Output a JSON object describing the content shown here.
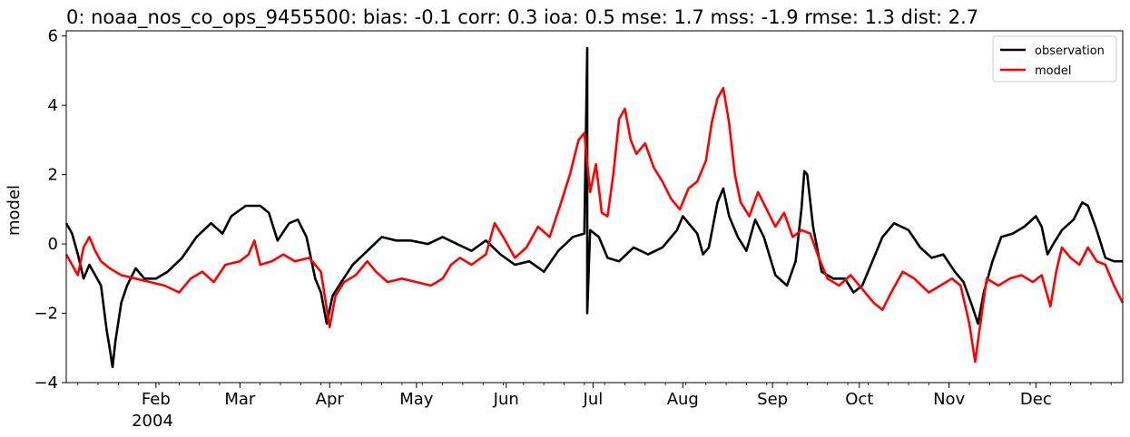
{
  "chart_data": {
    "type": "line",
    "title": "0: noaa_nos_co_ops_9455500: bias: -0.1  corr: 0.3  ioa: 0.5  mse: 1.7  mss: -1.9  rmse: 1.3  dist: 2.7",
    "xlabel": "",
    "ylabel": "model",
    "xlim": [
      "2004-01-01",
      "2004-12-31"
    ],
    "ylim": [
      -4,
      6.15
    ],
    "yticks": [
      -4,
      -2,
      0,
      2,
      4,
      6
    ],
    "ytick_labels": [
      "−4",
      "−2",
      "0",
      "2",
      "4",
      "6"
    ],
    "xticks": [
      {
        "date": "2004-02-01",
        "label": "Feb"
      },
      {
        "date": "2004-03-01",
        "label": "Mar"
      },
      {
        "date": "2004-04-01",
        "label": "Apr"
      },
      {
        "date": "2004-05-01",
        "label": "May"
      },
      {
        "date": "2004-06-01",
        "label": "Jun"
      },
      {
        "date": "2004-07-01",
        "label": "Jul"
      },
      {
        "date": "2004-08-01",
        "label": "Aug"
      },
      {
        "date": "2004-09-01",
        "label": "Sep"
      },
      {
        "date": "2004-10-01",
        "label": "Oct"
      },
      {
        "date": "2004-11-01",
        "label": "Nov"
      },
      {
        "date": "2004-12-01",
        "label": "Dec"
      }
    ],
    "year_label": "2004",
    "grid": false,
    "legend_position": "top-right",
    "series": [
      {
        "name": "observation",
        "color": "#000000",
        "points": [
          [
            "2004-01-01",
            0.6
          ],
          [
            "2004-01-03",
            0.3
          ],
          [
            "2004-01-05",
            -0.3
          ],
          [
            "2004-01-07",
            -1.0
          ],
          [
            "2004-01-09",
            -0.6
          ],
          [
            "2004-01-11",
            -0.9
          ],
          [
            "2004-01-13",
            -1.2
          ],
          [
            "2004-01-15",
            -2.5
          ],
          [
            "2004-01-16",
            -3.0
          ],
          [
            "2004-01-17",
            -3.55
          ],
          [
            "2004-01-18",
            -2.8
          ],
          [
            "2004-01-20",
            -1.7
          ],
          [
            "2004-01-22",
            -1.2
          ],
          [
            "2004-01-25",
            -0.7
          ],
          [
            "2004-01-28",
            -1.0
          ],
          [
            "2004-02-01",
            -1.0
          ],
          [
            "2004-02-05",
            -0.8
          ],
          [
            "2004-02-10",
            -0.4
          ],
          [
            "2004-02-15",
            0.2
          ],
          [
            "2004-02-20",
            0.6
          ],
          [
            "2004-02-24",
            0.3
          ],
          [
            "2004-02-27",
            0.8
          ],
          [
            "2004-03-03",
            1.1
          ],
          [
            "2004-03-08",
            1.1
          ],
          [
            "2004-03-11",
            0.9
          ],
          [
            "2004-03-14",
            0.1
          ],
          [
            "2004-03-18",
            0.6
          ],
          [
            "2004-03-21",
            0.7
          ],
          [
            "2004-03-24",
            0.2
          ],
          [
            "2004-03-27",
            -1.0
          ],
          [
            "2004-03-29",
            -1.4
          ],
          [
            "2004-03-31",
            -2.3
          ],
          [
            "2004-04-02",
            -1.5
          ],
          [
            "2004-04-05",
            -1.1
          ],
          [
            "2004-04-09",
            -0.6
          ],
          [
            "2004-04-14",
            -0.2
          ],
          [
            "2004-04-19",
            0.2
          ],
          [
            "2004-04-24",
            0.1
          ],
          [
            "2004-04-29",
            0.1
          ],
          [
            "2004-05-05",
            0.0
          ],
          [
            "2004-05-10",
            0.2
          ],
          [
            "2004-05-15",
            0.0
          ],
          [
            "2004-05-20",
            -0.2
          ],
          [
            "2004-05-25",
            0.1
          ],
          [
            "2004-05-30",
            -0.3
          ],
          [
            "2004-06-04",
            -0.6
          ],
          [
            "2004-06-09",
            -0.5
          ],
          [
            "2004-06-14",
            -0.8
          ],
          [
            "2004-06-19",
            -0.2
          ],
          [
            "2004-06-24",
            0.2
          ],
          [
            "2004-06-28",
            0.3
          ],
          [
            "2004-06-29",
            5.65
          ],
          [
            "2004-06-29",
            -2.0
          ],
          [
            "2004-06-30",
            0.4
          ],
          [
            "2004-07-03",
            0.2
          ],
          [
            "2004-07-06",
            -0.4
          ],
          [
            "2004-07-10",
            -0.5
          ],
          [
            "2004-07-15",
            -0.1
          ],
          [
            "2004-07-20",
            -0.3
          ],
          [
            "2004-07-25",
            -0.1
          ],
          [
            "2004-07-30",
            0.4
          ],
          [
            "2004-08-01",
            0.8
          ],
          [
            "2004-08-04",
            0.5
          ],
          [
            "2004-08-06",
            0.3
          ],
          [
            "2004-08-08",
            -0.3
          ],
          [
            "2004-08-10",
            -0.1
          ],
          [
            "2004-08-13",
            1.2
          ],
          [
            "2004-08-15",
            1.6
          ],
          [
            "2004-08-17",
            0.8
          ],
          [
            "2004-08-20",
            0.2
          ],
          [
            "2004-08-23",
            -0.2
          ],
          [
            "2004-08-26",
            0.7
          ],
          [
            "2004-08-29",
            0.2
          ],
          [
            "2004-09-02",
            -0.9
          ],
          [
            "2004-09-06",
            -1.2
          ],
          [
            "2004-09-09",
            -0.5
          ],
          [
            "2004-09-11",
            1.0
          ],
          [
            "2004-09-12",
            2.1
          ],
          [
            "2004-09-13",
            2.0
          ],
          [
            "2004-09-15",
            0.5
          ],
          [
            "2004-09-18",
            -0.8
          ],
          [
            "2004-09-22",
            -1.0
          ],
          [
            "2004-09-26",
            -1.0
          ],
          [
            "2004-09-29",
            -1.4
          ],
          [
            "2004-10-02",
            -1.2
          ],
          [
            "2004-10-05",
            -0.6
          ],
          [
            "2004-10-09",
            0.2
          ],
          [
            "2004-10-13",
            0.6
          ],
          [
            "2004-10-18",
            0.4
          ],
          [
            "2004-10-22",
            -0.1
          ],
          [
            "2004-10-26",
            -0.4
          ],
          [
            "2004-10-30",
            -0.3
          ],
          [
            "2004-11-03",
            -0.8
          ],
          [
            "2004-11-06",
            -1.1
          ],
          [
            "2004-11-09",
            -1.8
          ],
          [
            "2004-11-11",
            -2.3
          ],
          [
            "2004-11-13",
            -1.4
          ],
          [
            "2004-11-16",
            -0.5
          ],
          [
            "2004-11-19",
            0.2
          ],
          [
            "2004-11-23",
            0.3
          ],
          [
            "2004-11-27",
            0.5
          ],
          [
            "2004-12-01",
            0.8
          ],
          [
            "2004-12-03",
            0.5
          ],
          [
            "2004-12-05",
            -0.3
          ],
          [
            "2004-12-07",
            0.0
          ],
          [
            "2004-12-10",
            0.4
          ],
          [
            "2004-12-14",
            0.7
          ],
          [
            "2004-12-17",
            1.2
          ],
          [
            "2004-12-19",
            1.1
          ],
          [
            "2004-12-22",
            0.4
          ],
          [
            "2004-12-25",
            -0.4
          ],
          [
            "2004-12-28",
            -0.5
          ],
          [
            "2004-12-31",
            -0.5
          ]
        ]
      },
      {
        "name": "model",
        "color": "#ff0000",
        "points": [
          [
            "2004-01-01",
            -0.3
          ],
          [
            "2004-01-03",
            -0.6
          ],
          [
            "2004-01-05",
            -0.9
          ],
          [
            "2004-01-07",
            -0.1
          ],
          [
            "2004-01-09",
            0.2
          ],
          [
            "2004-01-11",
            -0.2
          ],
          [
            "2004-01-13",
            -0.5
          ],
          [
            "2004-01-16",
            -0.7
          ],
          [
            "2004-01-20",
            -0.9
          ],
          [
            "2004-01-25",
            -1.0
          ],
          [
            "2004-01-30",
            -1.1
          ],
          [
            "2004-02-04",
            -1.2
          ],
          [
            "2004-02-09",
            -1.4
          ],
          [
            "2004-02-13",
            -1.0
          ],
          [
            "2004-02-17",
            -0.8
          ],
          [
            "2004-02-21",
            -1.1
          ],
          [
            "2004-02-25",
            -0.6
          ],
          [
            "2004-03-01",
            -0.5
          ],
          [
            "2004-03-04",
            -0.3
          ],
          [
            "2004-03-06",
            0.1
          ],
          [
            "2004-03-08",
            -0.6
          ],
          [
            "2004-03-12",
            -0.5
          ],
          [
            "2004-03-16",
            -0.3
          ],
          [
            "2004-03-20",
            -0.5
          ],
          [
            "2004-03-25",
            -0.4
          ],
          [
            "2004-03-29",
            -0.8
          ],
          [
            "2004-04-01",
            -2.4
          ],
          [
            "2004-04-03",
            -1.5
          ],
          [
            "2004-04-06",
            -1.1
          ],
          [
            "2004-04-10",
            -0.9
          ],
          [
            "2004-04-14",
            -0.5
          ],
          [
            "2004-04-17",
            -0.8
          ],
          [
            "2004-04-21",
            -1.1
          ],
          [
            "2004-04-26",
            -1.0
          ],
          [
            "2004-05-01",
            -1.1
          ],
          [
            "2004-05-06",
            -1.2
          ],
          [
            "2004-05-10",
            -1.0
          ],
          [
            "2004-05-13",
            -0.6
          ],
          [
            "2004-05-16",
            -0.4
          ],
          [
            "2004-05-20",
            -0.6
          ],
          [
            "2004-05-25",
            -0.3
          ],
          [
            "2004-05-28",
            0.6
          ],
          [
            "2004-05-31",
            0.2
          ],
          [
            "2004-06-04",
            -0.4
          ],
          [
            "2004-06-08",
            -0.1
          ],
          [
            "2004-06-12",
            0.5
          ],
          [
            "2004-06-16",
            0.2
          ],
          [
            "2004-06-20",
            1.2
          ],
          [
            "2004-06-23",
            2.0
          ],
          [
            "2004-06-26",
            3.0
          ],
          [
            "2004-06-28",
            3.2
          ],
          [
            "2004-06-30",
            1.5
          ],
          [
            "2004-07-02",
            2.3
          ],
          [
            "2004-07-04",
            0.9
          ],
          [
            "2004-07-06",
            0.8
          ],
          [
            "2004-07-08",
            2.0
          ],
          [
            "2004-07-10",
            3.6
          ],
          [
            "2004-07-12",
            3.9
          ],
          [
            "2004-07-14",
            3.0
          ],
          [
            "2004-07-16",
            2.6
          ],
          [
            "2004-07-19",
            2.9
          ],
          [
            "2004-07-22",
            2.2
          ],
          [
            "2004-07-25",
            1.8
          ],
          [
            "2004-07-28",
            1.3
          ],
          [
            "2004-07-31",
            1.0
          ],
          [
            "2004-08-03",
            1.6
          ],
          [
            "2004-08-06",
            1.8
          ],
          [
            "2004-08-09",
            2.4
          ],
          [
            "2004-08-11",
            3.5
          ],
          [
            "2004-08-13",
            4.2
          ],
          [
            "2004-08-15",
            4.5
          ],
          [
            "2004-08-17",
            3.5
          ],
          [
            "2004-08-19",
            2.0
          ],
          [
            "2004-08-21",
            1.2
          ],
          [
            "2004-08-24",
            0.8
          ],
          [
            "2004-08-27",
            1.5
          ],
          [
            "2004-08-30",
            1.0
          ],
          [
            "2004-09-02",
            0.5
          ],
          [
            "2004-09-05",
            0.9
          ],
          [
            "2004-09-08",
            0.2
          ],
          [
            "2004-09-11",
            0.4
          ],
          [
            "2004-09-14",
            0.3
          ],
          [
            "2004-09-17",
            -0.4
          ],
          [
            "2004-09-20",
            -1.0
          ],
          [
            "2004-09-24",
            -1.2
          ],
          [
            "2004-09-28",
            -0.9
          ],
          [
            "2004-10-02",
            -1.3
          ],
          [
            "2004-10-06",
            -1.7
          ],
          [
            "2004-10-09",
            -1.9
          ],
          [
            "2004-10-12",
            -1.4
          ],
          [
            "2004-10-16",
            -0.8
          ],
          [
            "2004-10-20",
            -1.0
          ],
          [
            "2004-10-25",
            -1.4
          ],
          [
            "2004-10-29",
            -1.2
          ],
          [
            "2004-11-02",
            -1.0
          ],
          [
            "2004-11-05",
            -1.2
          ],
          [
            "2004-11-08",
            -2.3
          ],
          [
            "2004-11-10",
            -3.4
          ],
          [
            "2004-11-12",
            -2.2
          ],
          [
            "2004-11-14",
            -1.0
          ],
          [
            "2004-11-18",
            -1.2
          ],
          [
            "2004-11-22",
            -1.0
          ],
          [
            "2004-11-26",
            -0.9
          ],
          [
            "2004-11-30",
            -1.1
          ],
          [
            "2004-12-03",
            -0.9
          ],
          [
            "2004-12-06",
            -1.8
          ],
          [
            "2004-12-08",
            -0.8
          ],
          [
            "2004-12-10",
            -0.1
          ],
          [
            "2004-12-13",
            -0.4
          ],
          [
            "2004-12-16",
            -0.6
          ],
          [
            "2004-12-19",
            -0.1
          ],
          [
            "2004-12-22",
            -0.5
          ],
          [
            "2004-12-25",
            -0.6
          ],
          [
            "2004-12-28",
            -1.2
          ],
          [
            "2004-12-31",
            -1.7
          ]
        ]
      }
    ]
  }
}
